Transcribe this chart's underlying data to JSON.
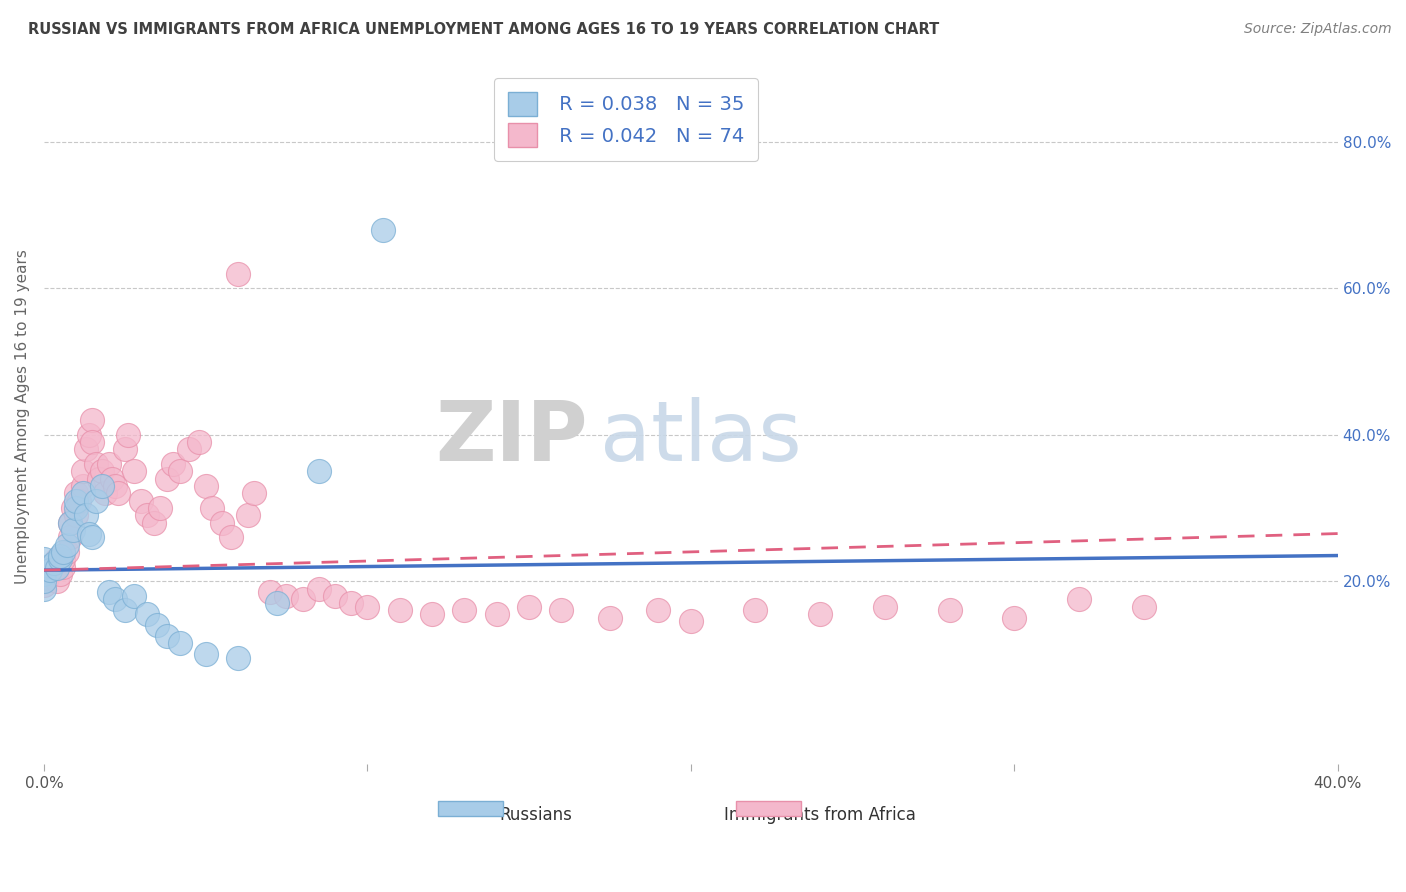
{
  "title": "RUSSIAN VS IMMIGRANTS FROM AFRICA UNEMPLOYMENT AMONG AGES 16 TO 19 YEARS CORRELATION CHART",
  "source": "Source: ZipAtlas.com",
  "ylabel": "Unemployment Among Ages 16 to 19 years",
  "xmin": 0.0,
  "xmax": 0.4,
  "ymin": -0.05,
  "ymax": 0.9,
  "x_ticks": [
    0.0,
    0.1,
    0.2,
    0.3,
    0.4
  ],
  "x_tick_labels": [
    "0.0%",
    "",
    "",
    "",
    "40.0%"
  ],
  "y_ticks_right": [
    0.2,
    0.4,
    0.6,
    0.8
  ],
  "y_tick_labels_right": [
    "20.0%",
    "40.0%",
    "60.0%",
    "80.0%"
  ],
  "watermark_zip": "ZIP",
  "watermark_atlas": "atlas",
  "legend_r1": "R = 0.038",
  "legend_n1": "N = 35",
  "legend_r2": "R = 0.042",
  "legend_n2": "N = 74",
  "color_blue": "#a8cce8",
  "color_pink": "#f4b8cc",
  "color_blue_edge": "#7bafd4",
  "color_pink_edge": "#e890aa",
  "color_blue_line": "#4472c4",
  "color_pink_line": "#e06080",
  "legend_text_color": "#4472c4",
  "title_color": "#404040",
  "source_color": "#808080",
  "background_color": "#ffffff",
  "grid_color": "#c8c8c8",
  "russians_x": [
    0.0,
    0.0,
    0.0,
    0.0,
    0.0,
    0.002,
    0.003,
    0.004,
    0.005,
    0.005,
    0.006,
    0.007,
    0.008,
    0.009,
    0.01,
    0.01,
    0.012,
    0.013,
    0.014,
    0.015,
    0.016,
    0.018,
    0.02,
    0.022,
    0.025,
    0.028,
    0.032,
    0.035,
    0.038,
    0.042,
    0.05,
    0.06,
    0.072,
    0.085,
    0.105
  ],
  "russians_y": [
    0.22,
    0.21,
    0.19,
    0.23,
    0.2,
    0.215,
    0.225,
    0.218,
    0.23,
    0.235,
    0.24,
    0.25,
    0.28,
    0.27,
    0.3,
    0.31,
    0.32,
    0.29,
    0.265,
    0.26,
    0.31,
    0.33,
    0.185,
    0.175,
    0.16,
    0.18,
    0.155,
    0.14,
    0.125,
    0.115,
    0.1,
    0.095,
    0.17,
    0.35,
    0.68
  ],
  "africa_x": [
    0.0,
    0.0,
    0.001,
    0.001,
    0.002,
    0.003,
    0.004,
    0.004,
    0.005,
    0.006,
    0.006,
    0.007,
    0.008,
    0.008,
    0.009,
    0.01,
    0.01,
    0.011,
    0.012,
    0.012,
    0.013,
    0.014,
    0.015,
    0.015,
    0.016,
    0.017,
    0.018,
    0.019,
    0.02,
    0.021,
    0.022,
    0.023,
    0.025,
    0.026,
    0.028,
    0.03,
    0.032,
    0.034,
    0.036,
    0.038,
    0.04,
    0.042,
    0.045,
    0.048,
    0.05,
    0.052,
    0.055,
    0.058,
    0.06,
    0.063,
    0.065,
    0.07,
    0.075,
    0.08,
    0.085,
    0.09,
    0.095,
    0.1,
    0.11,
    0.12,
    0.13,
    0.14,
    0.15,
    0.16,
    0.175,
    0.19,
    0.2,
    0.22,
    0.24,
    0.26,
    0.28,
    0.3,
    0.32,
    0.34
  ],
  "africa_y": [
    0.21,
    0.195,
    0.205,
    0.22,
    0.215,
    0.225,
    0.23,
    0.2,
    0.21,
    0.22,
    0.23,
    0.24,
    0.28,
    0.26,
    0.3,
    0.32,
    0.29,
    0.31,
    0.33,
    0.35,
    0.38,
    0.4,
    0.42,
    0.39,
    0.36,
    0.34,
    0.35,
    0.32,
    0.36,
    0.34,
    0.33,
    0.32,
    0.38,
    0.4,
    0.35,
    0.31,
    0.29,
    0.28,
    0.3,
    0.34,
    0.36,
    0.35,
    0.38,
    0.39,
    0.33,
    0.3,
    0.28,
    0.26,
    0.62,
    0.29,
    0.32,
    0.185,
    0.18,
    0.175,
    0.19,
    0.18,
    0.17,
    0.165,
    0.16,
    0.155,
    0.16,
    0.155,
    0.165,
    0.16,
    0.15,
    0.16,
    0.145,
    0.16,
    0.155,
    0.165,
    0.16,
    0.15,
    0.175,
    0.165
  ]
}
